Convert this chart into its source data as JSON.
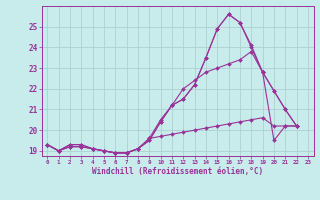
{
  "xlabel": "Windchill (Refroidissement éolien,°C)",
  "bg_color": "#c8ecec",
  "grid_color": "#b0d0d0",
  "line_color": "#993399",
  "spine_color": "#993399",
  "tick_color": "#993399",
  "xmin": -0.5,
  "xmax": 23.5,
  "ymin": 18.75,
  "ymax": 26.0,
  "yticks": [
    19,
    20,
    21,
    22,
    23,
    24,
    25
  ],
  "xticks": [
    0,
    1,
    2,
    3,
    4,
    5,
    6,
    7,
    8,
    9,
    10,
    11,
    12,
    13,
    14,
    15,
    16,
    17,
    18,
    19,
    20,
    21,
    22,
    23
  ],
  "series": [
    [
      19.3,
      19.0,
      19.3,
      19.3,
      19.1,
      19.0,
      18.9,
      18.9,
      19.1,
      19.5,
      20.4,
      21.2,
      21.5,
      22.2,
      23.5,
      24.9,
      25.6,
      25.2,
      24.1,
      22.8,
      21.9,
      21.0,
      20.2
    ],
    [
      19.3,
      19.0,
      19.3,
      19.3,
      19.1,
      19.0,
      18.9,
      18.9,
      19.1,
      19.5,
      20.4,
      21.2,
      21.5,
      22.2,
      23.5,
      24.9,
      25.6,
      25.2,
      24.0,
      22.8,
      19.5,
      20.2,
      20.2
    ],
    [
      19.3,
      19.0,
      19.2,
      19.2,
      19.1,
      19.0,
      18.9,
      18.9,
      19.1,
      19.6,
      20.5,
      21.2,
      22.0,
      22.4,
      22.8,
      23.0,
      23.2,
      23.4,
      23.8,
      22.8,
      21.9,
      21.0,
      20.2
    ],
    [
      19.3,
      19.0,
      19.2,
      19.2,
      19.1,
      19.0,
      18.9,
      18.9,
      19.1,
      19.6,
      19.7,
      19.8,
      19.9,
      20.0,
      20.1,
      20.2,
      20.3,
      20.4,
      20.5,
      20.6,
      20.2,
      20.2,
      20.2
    ]
  ]
}
